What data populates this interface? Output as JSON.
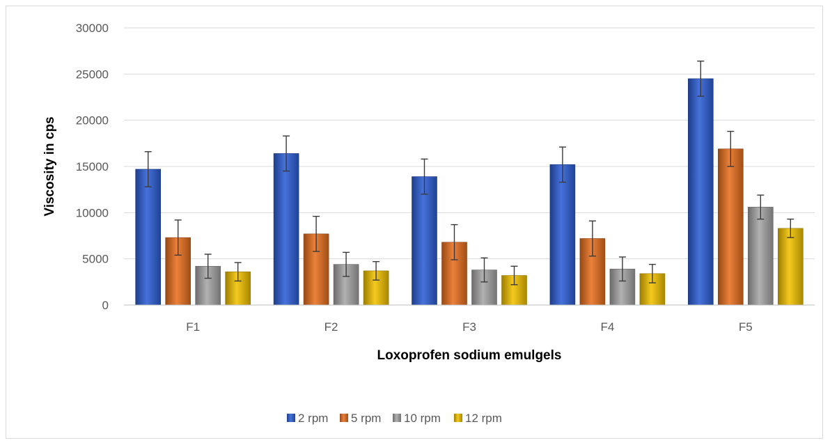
{
  "chart_data": {
    "type": "bar",
    "title": "",
    "xlabel": "Loxoprofen sodium emulgels",
    "ylabel": "Viscosity in cps",
    "categories": [
      "F1",
      "F2",
      "F3",
      "F4",
      "F5"
    ],
    "ylim": [
      0,
      30000
    ],
    "yticks": [
      0,
      5000,
      10000,
      15000,
      20000,
      25000,
      30000
    ],
    "grid": true,
    "legend_position": "bottom",
    "series": [
      {
        "name": "2 rpm",
        "color": "#2e5fd6",
        "values": [
          14700,
          16400,
          13900,
          15200,
          24500
        ],
        "errors": [
          1900,
          1900,
          1900,
          1900,
          1900
        ]
      },
      {
        "name": "5 rpm",
        "color": "#e8701f",
        "values": [
          7300,
          7700,
          6800,
          7200,
          16900
        ],
        "errors": [
          1900,
          1900,
          1900,
          1900,
          1900
        ]
      },
      {
        "name": "10 rpm",
        "color": "#a6a6a6",
        "values": [
          4200,
          4400,
          3800,
          3900,
          10600
        ],
        "errors": [
          1300,
          1300,
          1300,
          1300,
          1300
        ]
      },
      {
        "name": "12 rpm",
        "color": "#f2c200",
        "values": [
          3600,
          3700,
          3200,
          3400,
          8300
        ],
        "errors": [
          1000,
          1000,
          1000,
          1000,
          1000
        ]
      }
    ]
  }
}
